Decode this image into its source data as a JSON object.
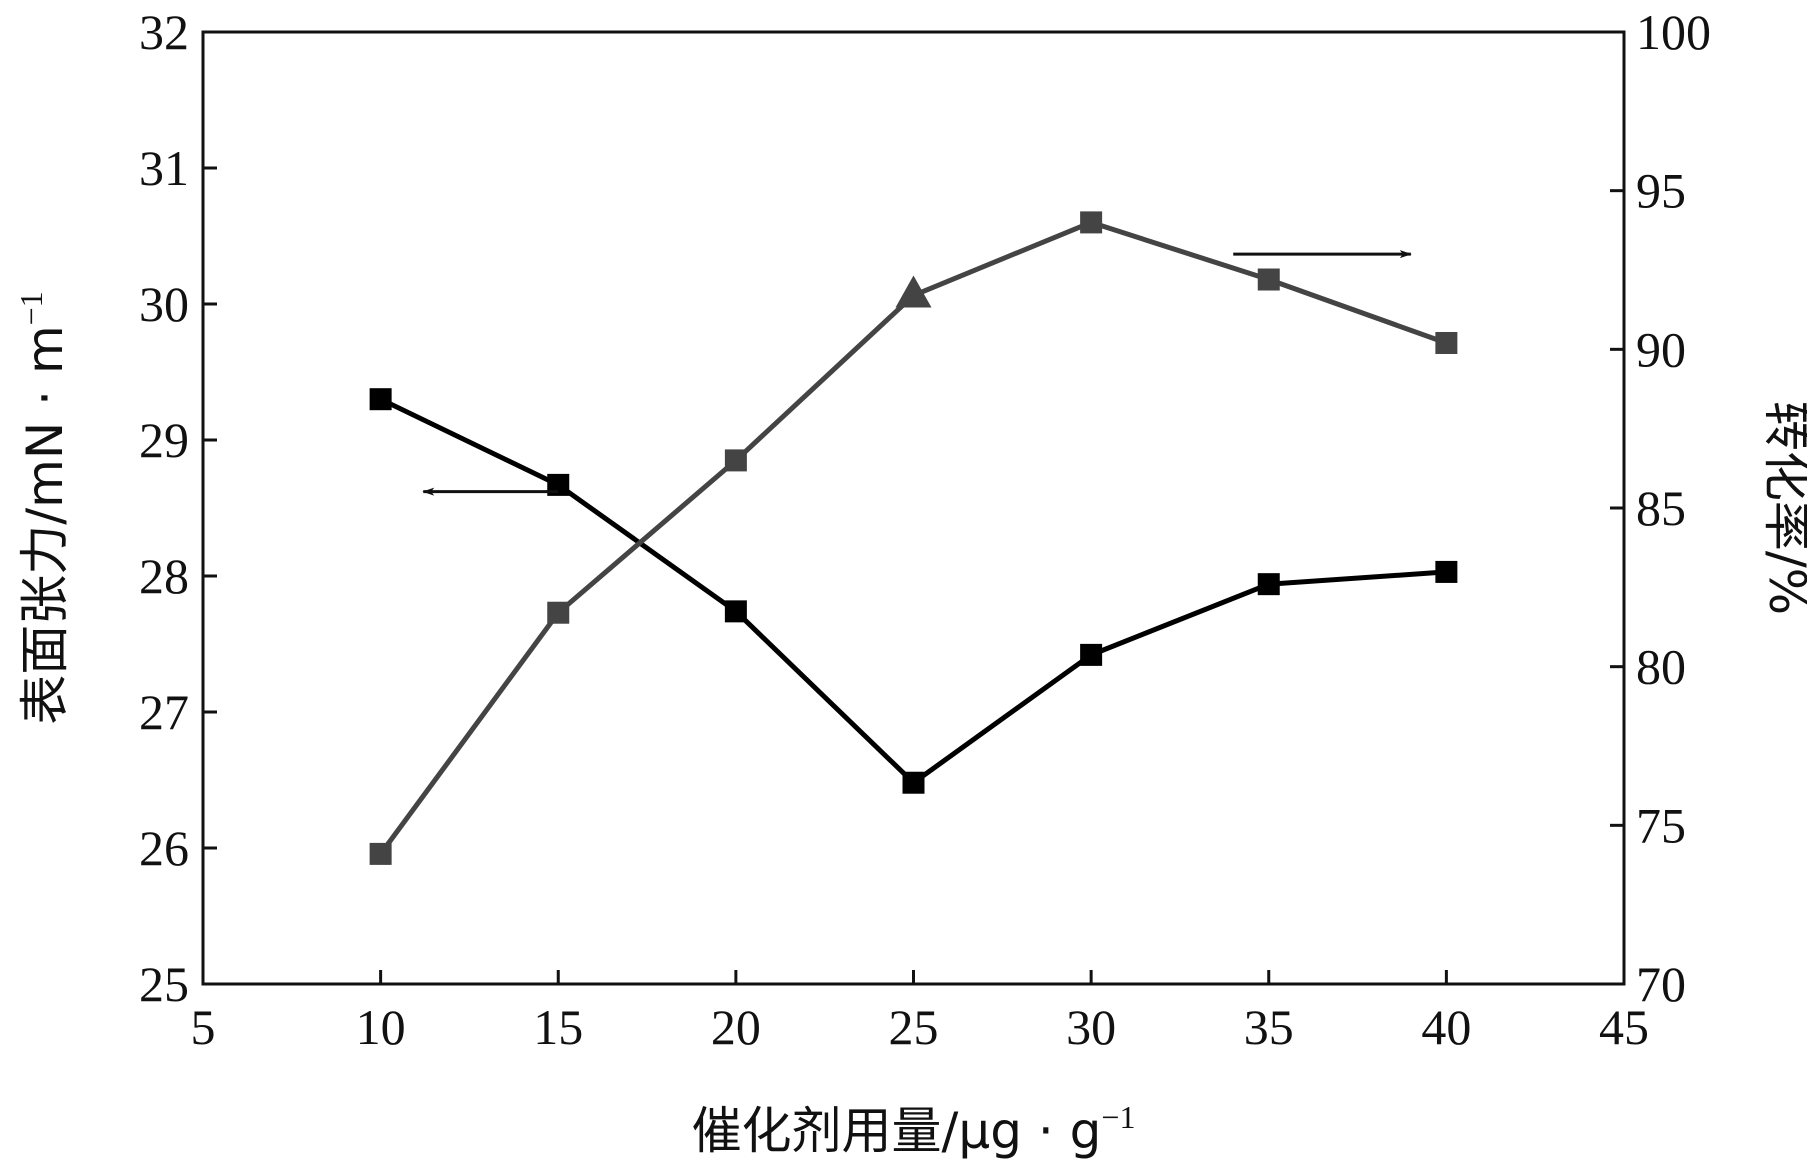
{
  "chart_data": {
    "type": "line",
    "title": "",
    "xlabel": "催化剂用量/μg · g",
    "xlabel_sup": "−1",
    "ylabel_left": "表面张力/mN · m",
    "ylabel_left_sup": "−1",
    "ylabel_right": "转化率/%",
    "xlim": [
      5,
      45
    ],
    "ylim_left": [
      25,
      32
    ],
    "ylim_right": [
      70,
      100
    ],
    "x_ticks": [
      5,
      10,
      15,
      20,
      25,
      30,
      35,
      40,
      45
    ],
    "y_left_ticks": [
      25,
      26,
      27,
      28,
      29,
      30,
      31,
      32
    ],
    "y_right_ticks": [
      70,
      75,
      80,
      85,
      90,
      95,
      100
    ],
    "grid": false,
    "series": [
      {
        "axis": "left",
        "color": "#000000",
        "marker": "square",
        "x": [
          10,
          15,
          20,
          25,
          30,
          35,
          40
        ],
        "y": [
          29.3,
          28.67,
          27.74,
          26.48,
          27.42,
          27.94,
          28.03
        ]
      },
      {
        "axis": "right",
        "color": "#444444",
        "marker": "square",
        "marker_overrides": {
          "3": "triangle"
        },
        "x": [
          10,
          15,
          20,
          25,
          30,
          35,
          40
        ],
        "y": [
          74.1,
          81.7,
          86.5,
          91.7,
          94.0,
          92.2,
          90.2
        ]
      }
    ],
    "annotations": [
      {
        "type": "arrow",
        "direction": "left",
        "refers_to_axis": "left",
        "near_series_index": 0,
        "at": {
          "x": 15,
          "y_left": 28.62
        },
        "length_x": 3.8
      },
      {
        "type": "arrow",
        "direction": "right",
        "refers_to_axis": "right",
        "near_series_index": 1,
        "at": {
          "x": 34,
          "y_right": 93
        },
        "length_x": 5
      }
    ]
  }
}
